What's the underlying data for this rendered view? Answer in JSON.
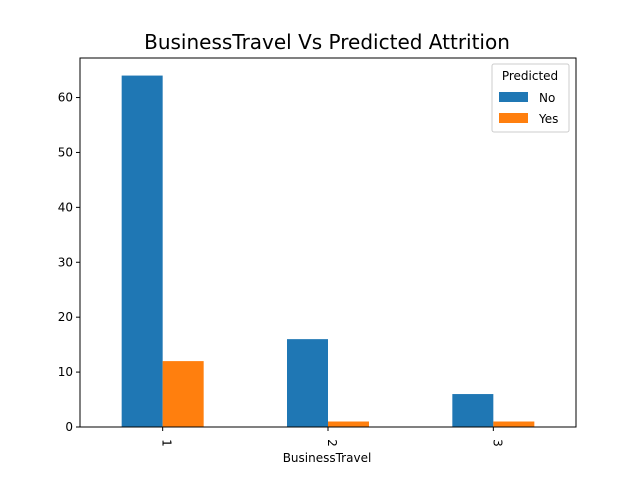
{
  "chart_data": {
    "type": "bar",
    "title": "BusinessTravel Vs  Predicted Attrition",
    "xlabel": "BusinessTravel",
    "ylabel": "",
    "categories": [
      "1",
      "2",
      "3"
    ],
    "series": [
      {
        "name": "No",
        "values": [
          64,
          16,
          6
        ],
        "color": "#1f77b4"
      },
      {
        "name": "Yes",
        "values": [
          12,
          1,
          1
        ],
        "color": "#ff7f0e"
      }
    ],
    "ylim": [
      0,
      67.2
    ],
    "yticks": [
      0,
      10,
      20,
      30,
      40,
      50,
      60
    ],
    "legend": {
      "title": "Predicted",
      "placement": "top-right"
    },
    "grid": false
  }
}
